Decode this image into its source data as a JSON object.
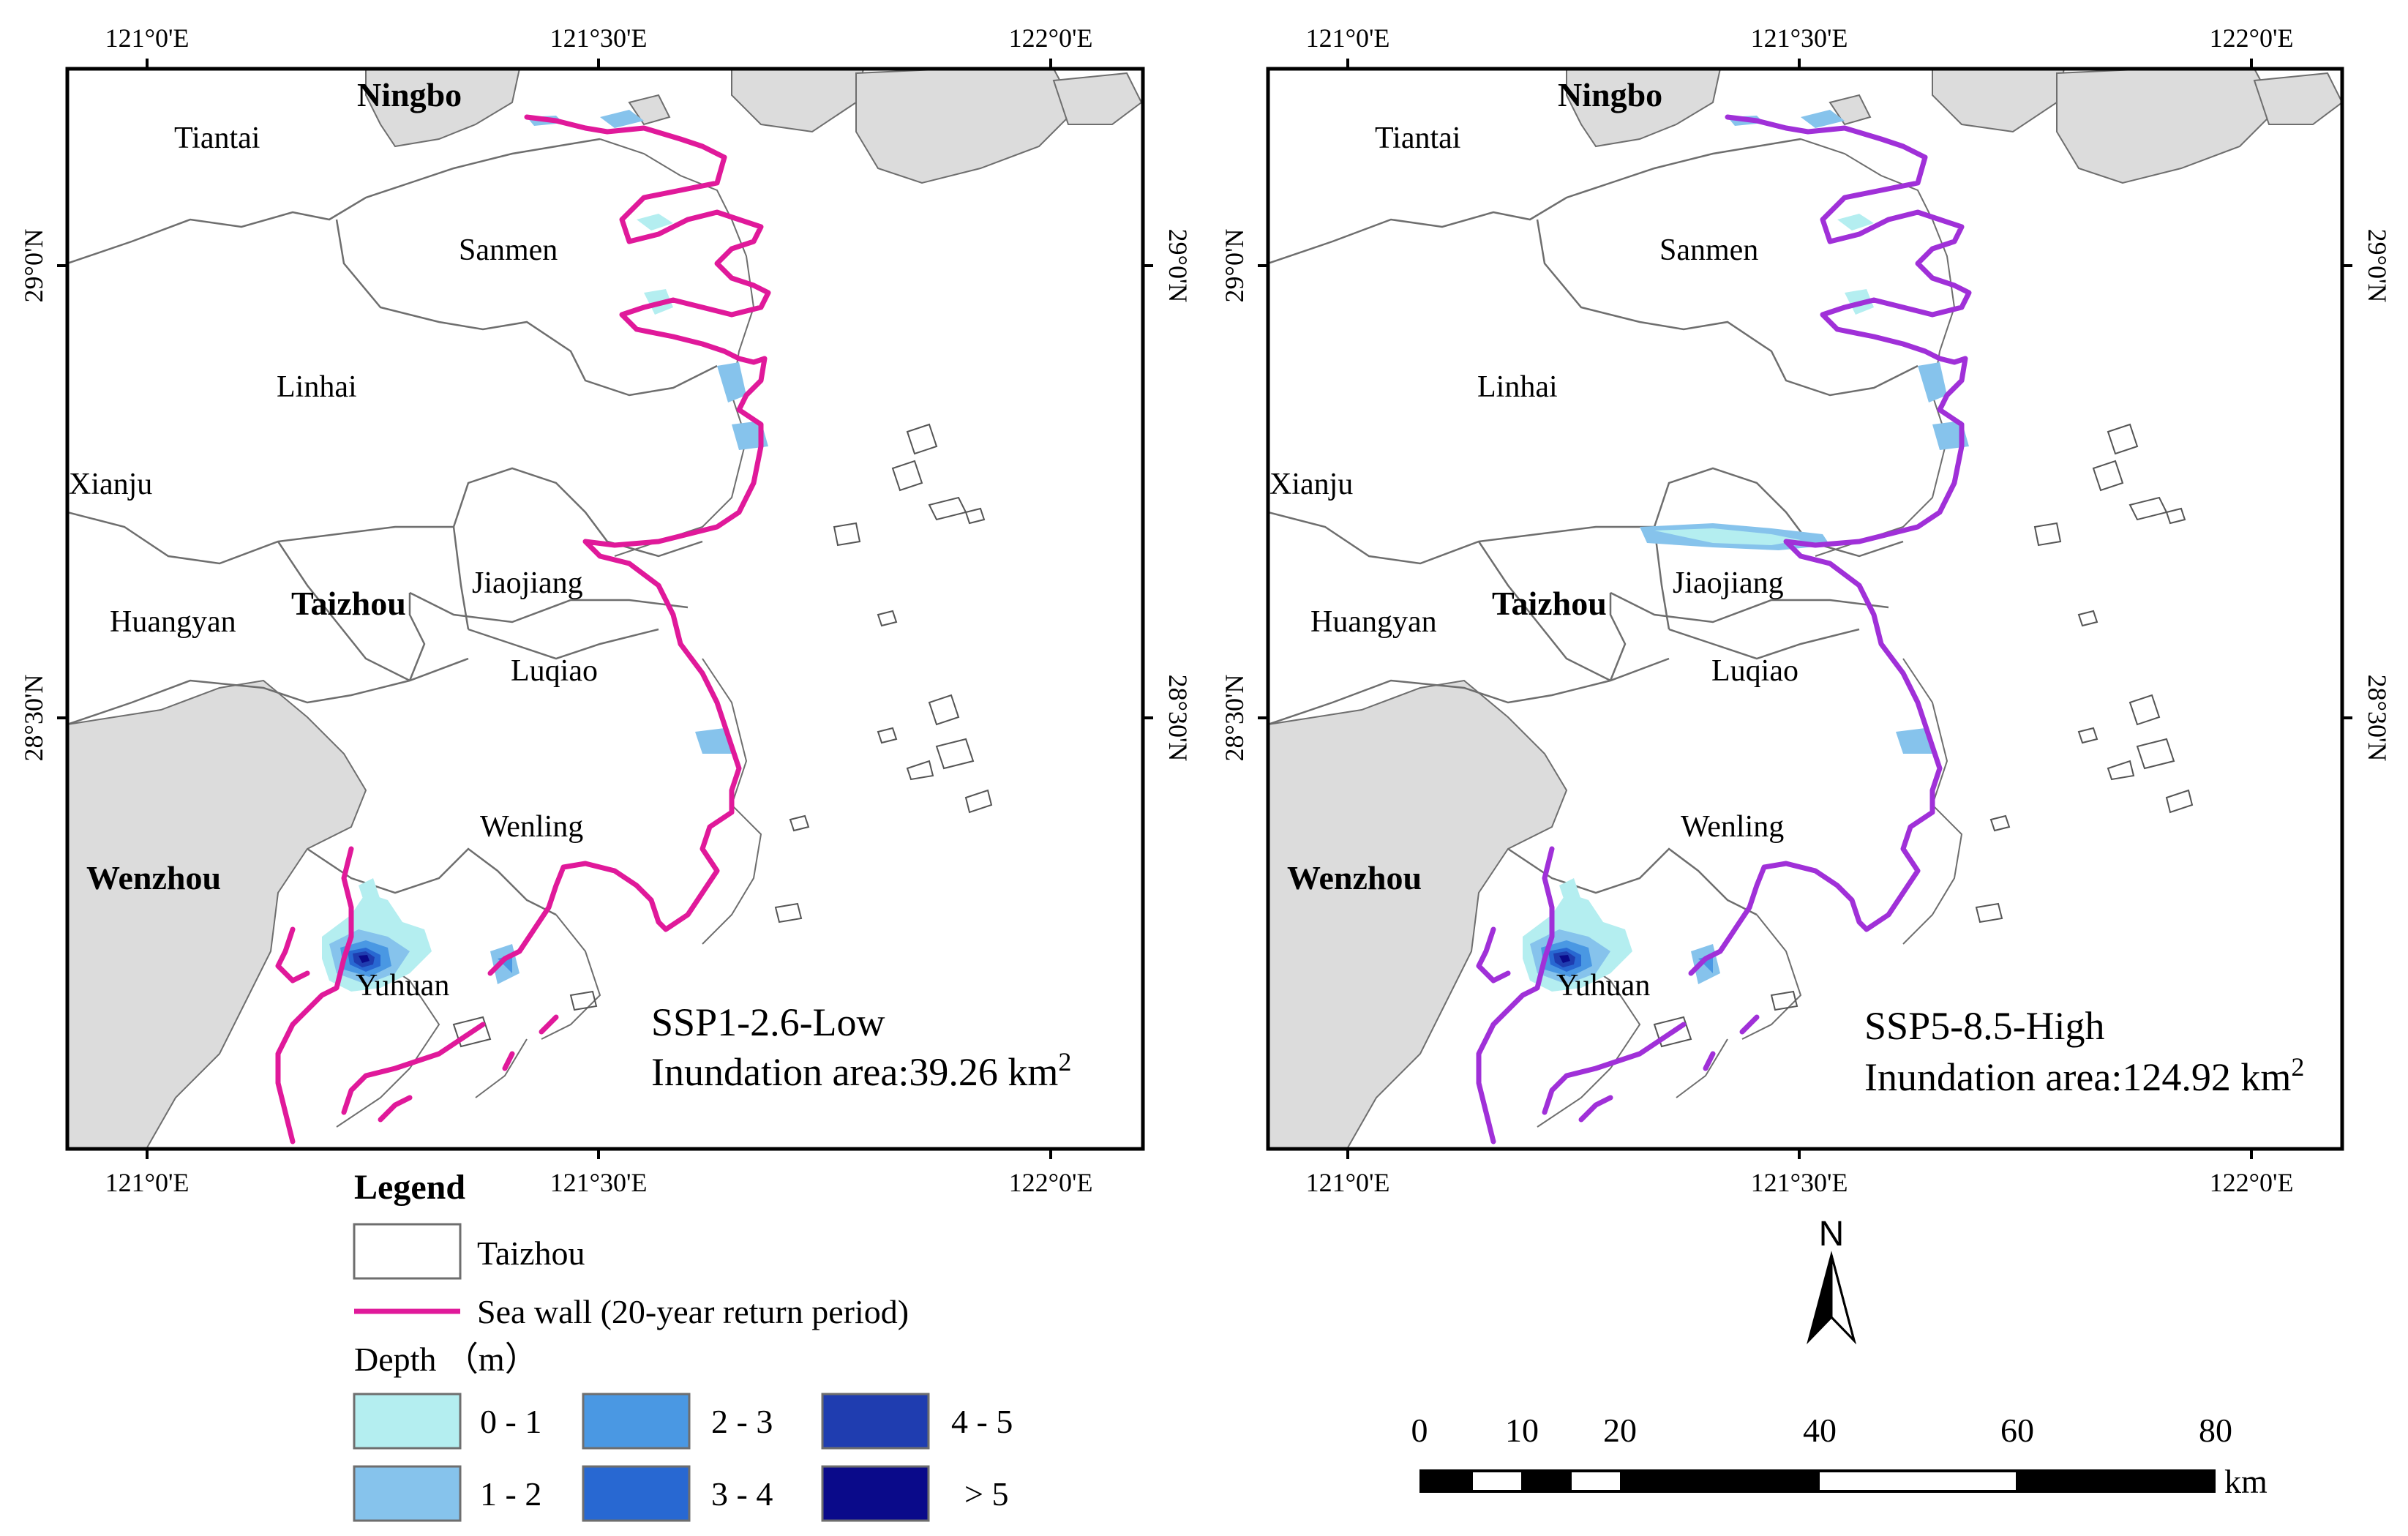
{
  "colors": {
    "frame": "#000000",
    "land_grey": "#dcdcdc",
    "boundary": "#6e6e6e",
    "seawall_left": "#e0199a",
    "seawall_right": "#a030d8",
    "depth_0_1": "#b4eef0",
    "depth_1_2": "#86c3ec",
    "depth_2_3": "#4a98e3",
    "depth_3_4": "#2868d2",
    "depth_4_5": "#1f3db0",
    "depth_gt5": "#0a0a8a"
  },
  "axis_labels": {
    "lon_121_0": "121°0'E",
    "lon_121_30": "121°30'E",
    "lon_122_0": "122°0'E",
    "lat_29_0": "29°0'N",
    "lat_28_30": "28°30'N"
  },
  "places": {
    "ningbo": "Ningbo",
    "tiantai": "Tiantai",
    "sanmen": "Sanmen",
    "linhai": "Linhai",
    "xianju": "Xianju",
    "taizhou": "Taizhou",
    "jiaojiang": "Jiaojiang",
    "huangyan": "Huangyan",
    "luqiao": "Luqiao",
    "wenling": "Wenling",
    "wenzhou": "Wenzhou",
    "yuhuan": "Yuhuan"
  },
  "panels": [
    {
      "scenario": "SSP1-2.6-Low",
      "area_label": "Inundation area:39.26 km",
      "area_value_km2": 39.26,
      "superscript": "2"
    },
    {
      "scenario": "SSP5-8.5-High",
      "area_label": "Inundation area:124.92 km",
      "area_value_km2": 124.92,
      "superscript": "2"
    }
  ],
  "legend": {
    "title": "Legend",
    "taizhou_label": "Taizhou",
    "seawall_label": "Sea wall (20-year return period)",
    "depth_title": "Depth （m）",
    "depth_classes": [
      "0 - 1",
      "1 - 2",
      "2 - 3",
      "3 - 4",
      "4 - 5",
      "> 5"
    ]
  },
  "north_arrow": {
    "label": "N"
  },
  "scale_bar": {
    "ticks": [
      "0",
      "10",
      "20",
      "40",
      "60",
      "80"
    ],
    "unit": "km"
  }
}
